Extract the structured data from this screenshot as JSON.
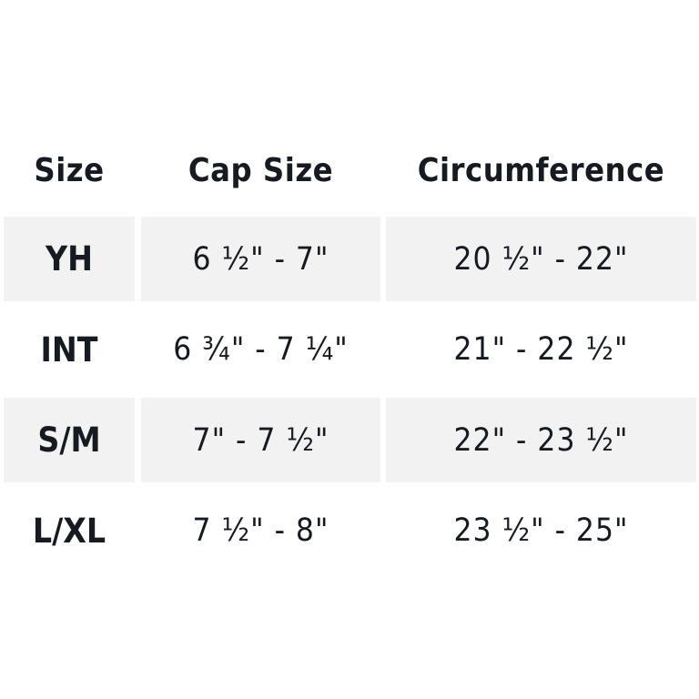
{
  "headers": [
    "Size",
    "Cap Size",
    "Circumference"
  ],
  "rows": [
    {
      "size": "YH",
      "cap": "6 ½\" - 7\"",
      "circ": "20 ½\" - 22\""
    },
    {
      "size": "INT",
      "cap": "6 ¾\" - 7 ¼\"",
      "circ": "21\" - 22 ½\""
    },
    {
      "size": "S/M",
      "cap": "7\" - 7 ½\"",
      "circ": "22\" - 23 ½\""
    },
    {
      "size": "L/XL",
      "cap": "7 ½\" - 8\"",
      "circ": "23 ½\" - 25\""
    }
  ],
  "colors": {
    "stripe": "#f2f2f2",
    "text": "#161b22"
  }
}
